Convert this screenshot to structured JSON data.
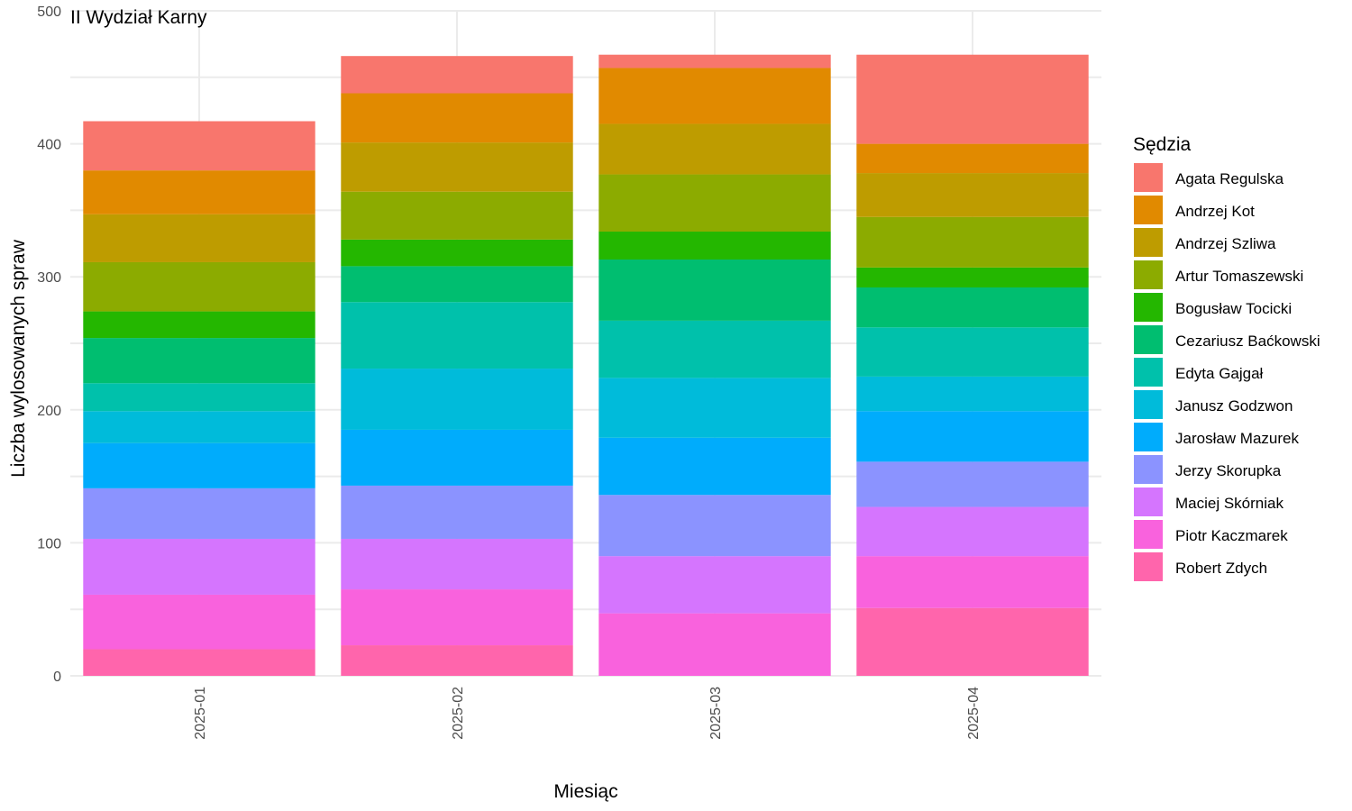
{
  "chart_data": {
    "type": "bar",
    "stacked": true,
    "title": "II Wydział Karny",
    "xlabel": "Miesiąc",
    "ylabel": "Liczba wylosowanych spraw",
    "ylim": [
      0,
      500
    ],
    "yticks": [
      0,
      100,
      200,
      300,
      400,
      500
    ],
    "grid": true,
    "legend_title": "Sędzia",
    "legend_position": "right",
    "categories": [
      "2025-01",
      "2025-02",
      "2025-03",
      "2025-04"
    ],
    "series": [
      {
        "name": "Agata Regulska",
        "color": "#F8766D",
        "values": [
          37,
          28,
          10,
          67
        ]
      },
      {
        "name": "Andrzej Kot",
        "color": "#E18A00",
        "values": [
          33,
          37,
          42,
          22
        ]
      },
      {
        "name": "Andrzej Szliwa",
        "color": "#BE9C00",
        "values": [
          36,
          37,
          38,
          33
        ]
      },
      {
        "name": "Artur Tomaszewski",
        "color": "#8CAB00",
        "values": [
          37,
          36,
          43,
          38
        ]
      },
      {
        "name": "Bogusław Tocicki",
        "color": "#24B700",
        "values": [
          20,
          20,
          21,
          15
        ]
      },
      {
        "name": "Cezariusz Baćkowski",
        "color": "#00BE70",
        "values": [
          34,
          27,
          46,
          30
        ]
      },
      {
        "name": "Edyta Gajgał",
        "color": "#00C1AB",
        "values": [
          21,
          50,
          43,
          37
        ]
      },
      {
        "name": "Janusz Godzwon",
        "color": "#00BBDA",
        "values": [
          24,
          46,
          45,
          26
        ]
      },
      {
        "name": "Jarosław Mazurek",
        "color": "#00ACFC",
        "values": [
          34,
          42,
          43,
          38
        ]
      },
      {
        "name": "Jerzy Skorupka",
        "color": "#8B93FF",
        "values": [
          38,
          40,
          46,
          34
        ]
      },
      {
        "name": "Maciej Skórniak",
        "color": "#D575FE",
        "values": [
          42,
          38,
          43,
          37
        ]
      },
      {
        "name": "Piotr Kaczmarek",
        "color": "#F962DD",
        "values": [
          41,
          42,
          47,
          39
        ]
      },
      {
        "name": "Robert Zdych",
        "color": "#FF65AC",
        "values": [
          20,
          23,
          0,
          51
        ]
      }
    ]
  }
}
